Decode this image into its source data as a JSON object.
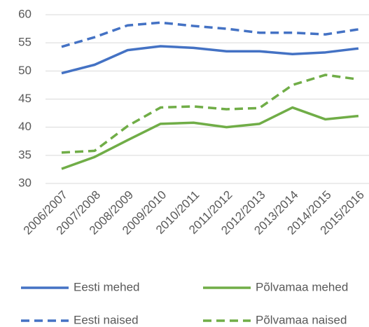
{
  "chart_data": {
    "type": "line",
    "categories": [
      "2006/2007",
      "2007/2008",
      "2008/2009",
      "2009/2010",
      "2010/2011",
      "2011/2012",
      "2012/2013",
      "2013/2014",
      "2014/2015",
      "2015/2016"
    ],
    "series": [
      {
        "name": "Eesti mehed",
        "color": "#4472c4",
        "line_style": "solid",
        "values": [
          49.6,
          51.1,
          53.7,
          54.4,
          54.1,
          53.5,
          53.5,
          53.0,
          53.3,
          54.0
        ]
      },
      {
        "name": "Põlvamaa mehed",
        "color": "#70ad47",
        "line_style": "solid",
        "values": [
          32.6,
          34.7,
          37.7,
          40.6,
          40.8,
          40.0,
          40.6,
          43.5,
          41.4,
          42.0
        ]
      },
      {
        "name": "Eesti naised",
        "color": "#4472c4",
        "line_style": "dashed",
        "values": [
          54.3,
          56.0,
          58.1,
          58.6,
          58.0,
          57.5,
          56.8,
          56.8,
          56.5,
          57.4
        ]
      },
      {
        "name": "Põlvamaa naised",
        "color": "#70ad47",
        "line_style": "dashed",
        "values": [
          35.5,
          35.8,
          40.2,
          43.5,
          43.7,
          43.2,
          43.4,
          47.5,
          49.3,
          48.5
        ]
      }
    ],
    "ylim": [
      30,
      60
    ],
    "yticks": [
      30,
      35,
      40,
      45,
      50,
      55,
      60
    ],
    "grid": true,
    "legend": "bottom"
  }
}
